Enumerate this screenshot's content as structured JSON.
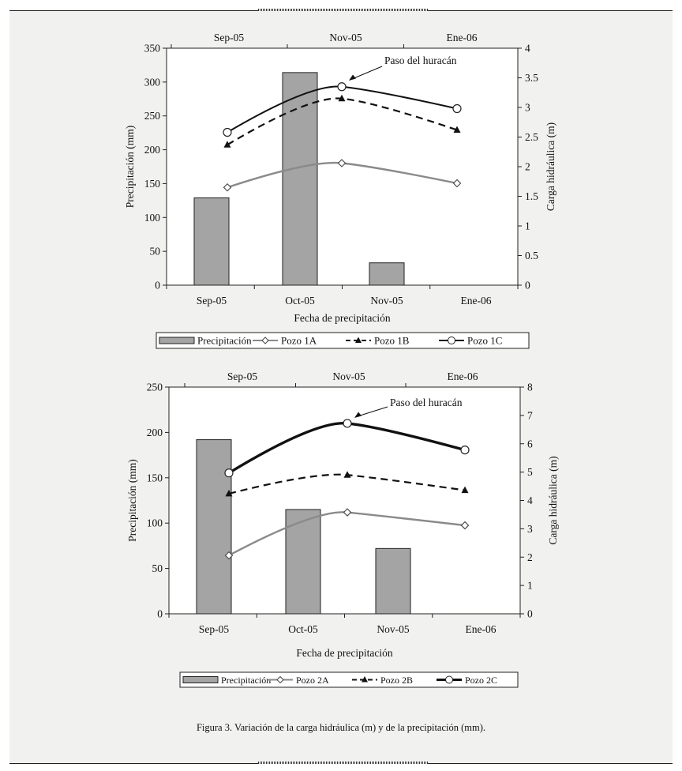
{
  "chart_data": [
    {
      "type": "bar",
      "categories": [
        "Sep-05",
        "Oct-05",
        "Nov-05",
        "Ene-06"
      ],
      "bar_series": {
        "name": "Precipitación",
        "values": [
          129,
          314,
          33,
          0
        ],
        "color": "#a4a4a4"
      },
      "line_categories": [
        "Sep-05",
        "Nov-05",
        "Ene-06"
      ],
      "line_series": [
        {
          "name": "Pozo 1A",
          "values": [
            1.65,
            2.06,
            1.72
          ],
          "style": "gray-diamond"
        },
        {
          "name": "Pozo 1B",
          "values": [
            2.37,
            3.15,
            2.62
          ],
          "style": "dashed-triangle"
        },
        {
          "name": "Pozo 1C",
          "values": [
            2.58,
            3.35,
            2.98
          ],
          "style": "solid-circle"
        }
      ],
      "xlabel": "Fecha de precipitación",
      "ylabel": "Precipitación (mm)",
      "y2label": "Carga hidráulica (m)",
      "ylim": [
        0,
        350
      ],
      "y2lim": [
        0,
        4
      ],
      "yticks": [
        0,
        50,
        100,
        150,
        200,
        250,
        300,
        350
      ],
      "y2ticks": [
        "0",
        "0.5",
        "1",
        "1.5",
        "2",
        "2.5",
        "3",
        "3.5",
        "4"
      ],
      "annotation": "Paso del huracán",
      "legend": [
        "Precipitación",
        "Pozo 1A",
        "Pozo 1B",
        "Pozo 1C"
      ],
      "grid": false,
      "legend_position": "bottom"
    },
    {
      "type": "bar",
      "categories": [
        "Sep-05",
        "Oct-05",
        "Nov-05",
        "Ene-06"
      ],
      "bar_series": {
        "name": "Precipitación",
        "values": [
          192,
          115,
          72,
          0
        ],
        "color": "#a4a4a4"
      },
      "line_categories": [
        "Sep-05",
        "Nov-05",
        "Ene-06"
      ],
      "line_series": [
        {
          "name": "Pozo 2A",
          "values": [
            2.06,
            3.58,
            3.12
          ],
          "style": "gray-diamond"
        },
        {
          "name": "Pozo 2B",
          "values": [
            4.24,
            4.9,
            4.36
          ],
          "style": "dashed-triangle"
        },
        {
          "name": "Pozo 2C",
          "values": [
            4.97,
            6.72,
            5.78
          ],
          "style": "thick-circle"
        }
      ],
      "xlabel": "Fecha de precipitación",
      "ylabel": "Precipitación (mm)",
      "y2label": "Carga hidráulica (m)",
      "ylim": [
        0,
        250
      ],
      "y2lim": [
        0,
        8
      ],
      "yticks": [
        0,
        50,
        100,
        150,
        200,
        250
      ],
      "y2ticks": [
        "0",
        "1",
        "2",
        "3",
        "4",
        "5",
        "6",
        "7",
        "8"
      ],
      "annotation": "Paso del huracán",
      "legend": [
        "Precipitación",
        "Pozo 2A",
        "Pozo 2B",
        "Pozo 2C"
      ],
      "grid": false,
      "legend_position": "bottom"
    }
  ],
  "caption": "Figura 3. Variación de la carga hidráulica (m) y de la precipitación (mm)."
}
